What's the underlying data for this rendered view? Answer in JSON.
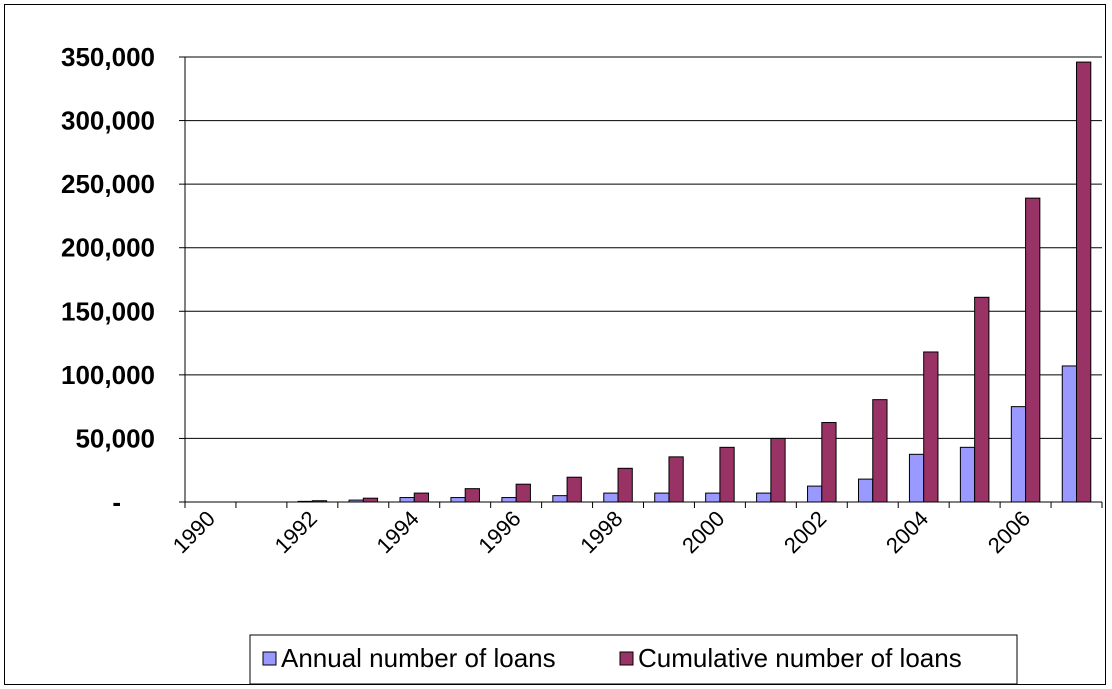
{
  "chart_data": {
    "type": "bar",
    "categories": [
      "1990",
      "1991",
      "1992",
      "1993",
      "1994",
      "1995",
      "1996",
      "1997",
      "1998",
      "1999",
      "2000",
      "2001",
      "2002",
      "2003",
      "2004",
      "2005",
      "2006",
      "2007"
    ],
    "x_tick_labels": [
      "1990",
      "1992",
      "1994",
      "1996",
      "1998",
      "2000",
      "2002",
      "2004",
      "2006"
    ],
    "y_tick_labels": [
      "-",
      "50,000",
      "100,000",
      "150,000",
      "200,000",
      "250,000",
      "300,000",
      "350,000"
    ],
    "ylim": [
      0,
      350000
    ],
    "grid": true,
    "legend_position": "bottom",
    "series": [
      {
        "name": "Annual number of loans",
        "color": "#9999FF",
        "values": [
          0,
          0,
          500,
          1500,
          3500,
          3500,
          3500,
          5000,
          7000,
          7000,
          7000,
          7000,
          12500,
          18000,
          37500,
          43000,
          75000,
          107000
        ]
      },
      {
        "name": "Cumulative number of loans",
        "color": "#993366",
        "values": [
          0,
          0,
          1000,
          3000,
          7000,
          10500,
          14000,
          19500,
          26500,
          35500,
          43000,
          50000,
          62500,
          80500,
          118000,
          161000,
          239000,
          346000
        ]
      }
    ]
  }
}
